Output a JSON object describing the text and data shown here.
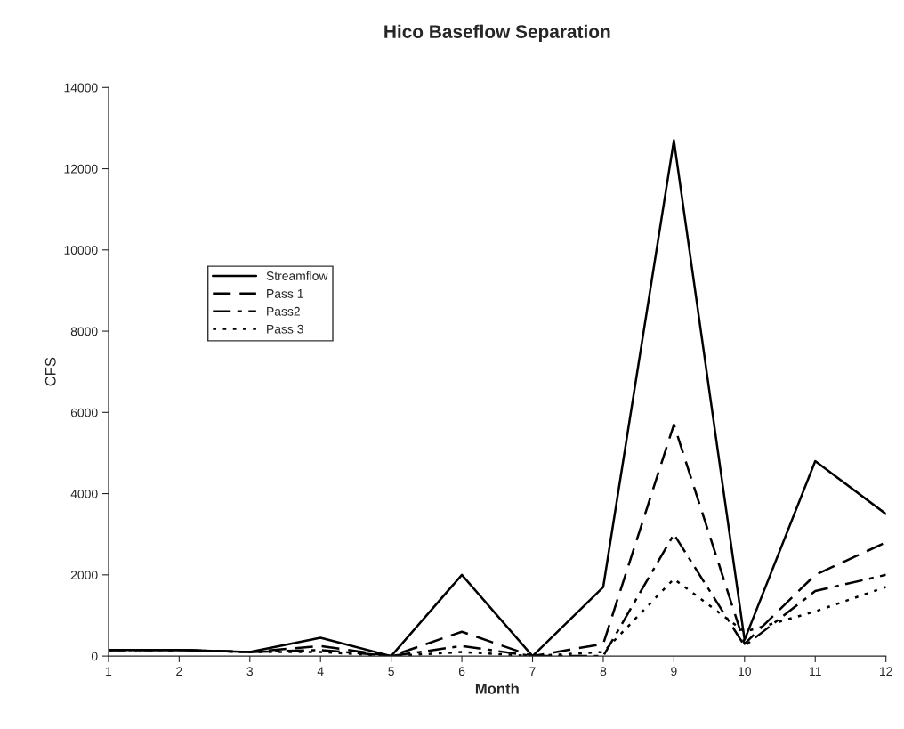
{
  "chart_data": {
    "type": "line",
    "title": "Hico Baseflow Separation",
    "xlabel": "Month",
    "ylabel": "CFS",
    "x": [
      1,
      2,
      3,
      4,
      5,
      6,
      7,
      8,
      9,
      10,
      11,
      12
    ],
    "series": [
      {
        "name": "Streamflow",
        "color": "#000000",
        "line_style": "solid",
        "values": [
          150,
          150,
          100,
          450,
          0,
          2000,
          0,
          1700,
          12700,
          400,
          4800,
          3500
        ]
      },
      {
        "name": "Pass 1",
        "color": "#000000",
        "line_style": "dashed",
        "values": [
          150,
          150,
          100,
          250,
          0,
          600,
          0,
          300,
          5700,
          300,
          2000,
          2800
        ]
      },
      {
        "name": "Pass2",
        "color": "#000000",
        "line_style": "dashdot",
        "values": [
          150,
          150,
          100,
          150,
          0,
          250,
          0,
          0,
          3000,
          250,
          1600,
          2000
        ]
      },
      {
        "name": "Pass 3",
        "color": "#000000",
        "line_style": "dotted",
        "values": [
          150,
          150,
          100,
          100,
          0,
          100,
          0,
          100,
          1900,
          600,
          1100,
          1700
        ]
      }
    ],
    "xlim": [
      1,
      12
    ],
    "xticks": [
      1,
      2,
      3,
      4,
      5,
      6,
      7,
      8,
      9,
      10,
      11,
      12
    ],
    "ylim": [
      0,
      14000
    ],
    "yticks": [
      0,
      2000,
      4000,
      6000,
      8000,
      10000,
      12000,
      14000
    ],
    "grid": false,
    "legend": "left",
    "marker": "none"
  }
}
